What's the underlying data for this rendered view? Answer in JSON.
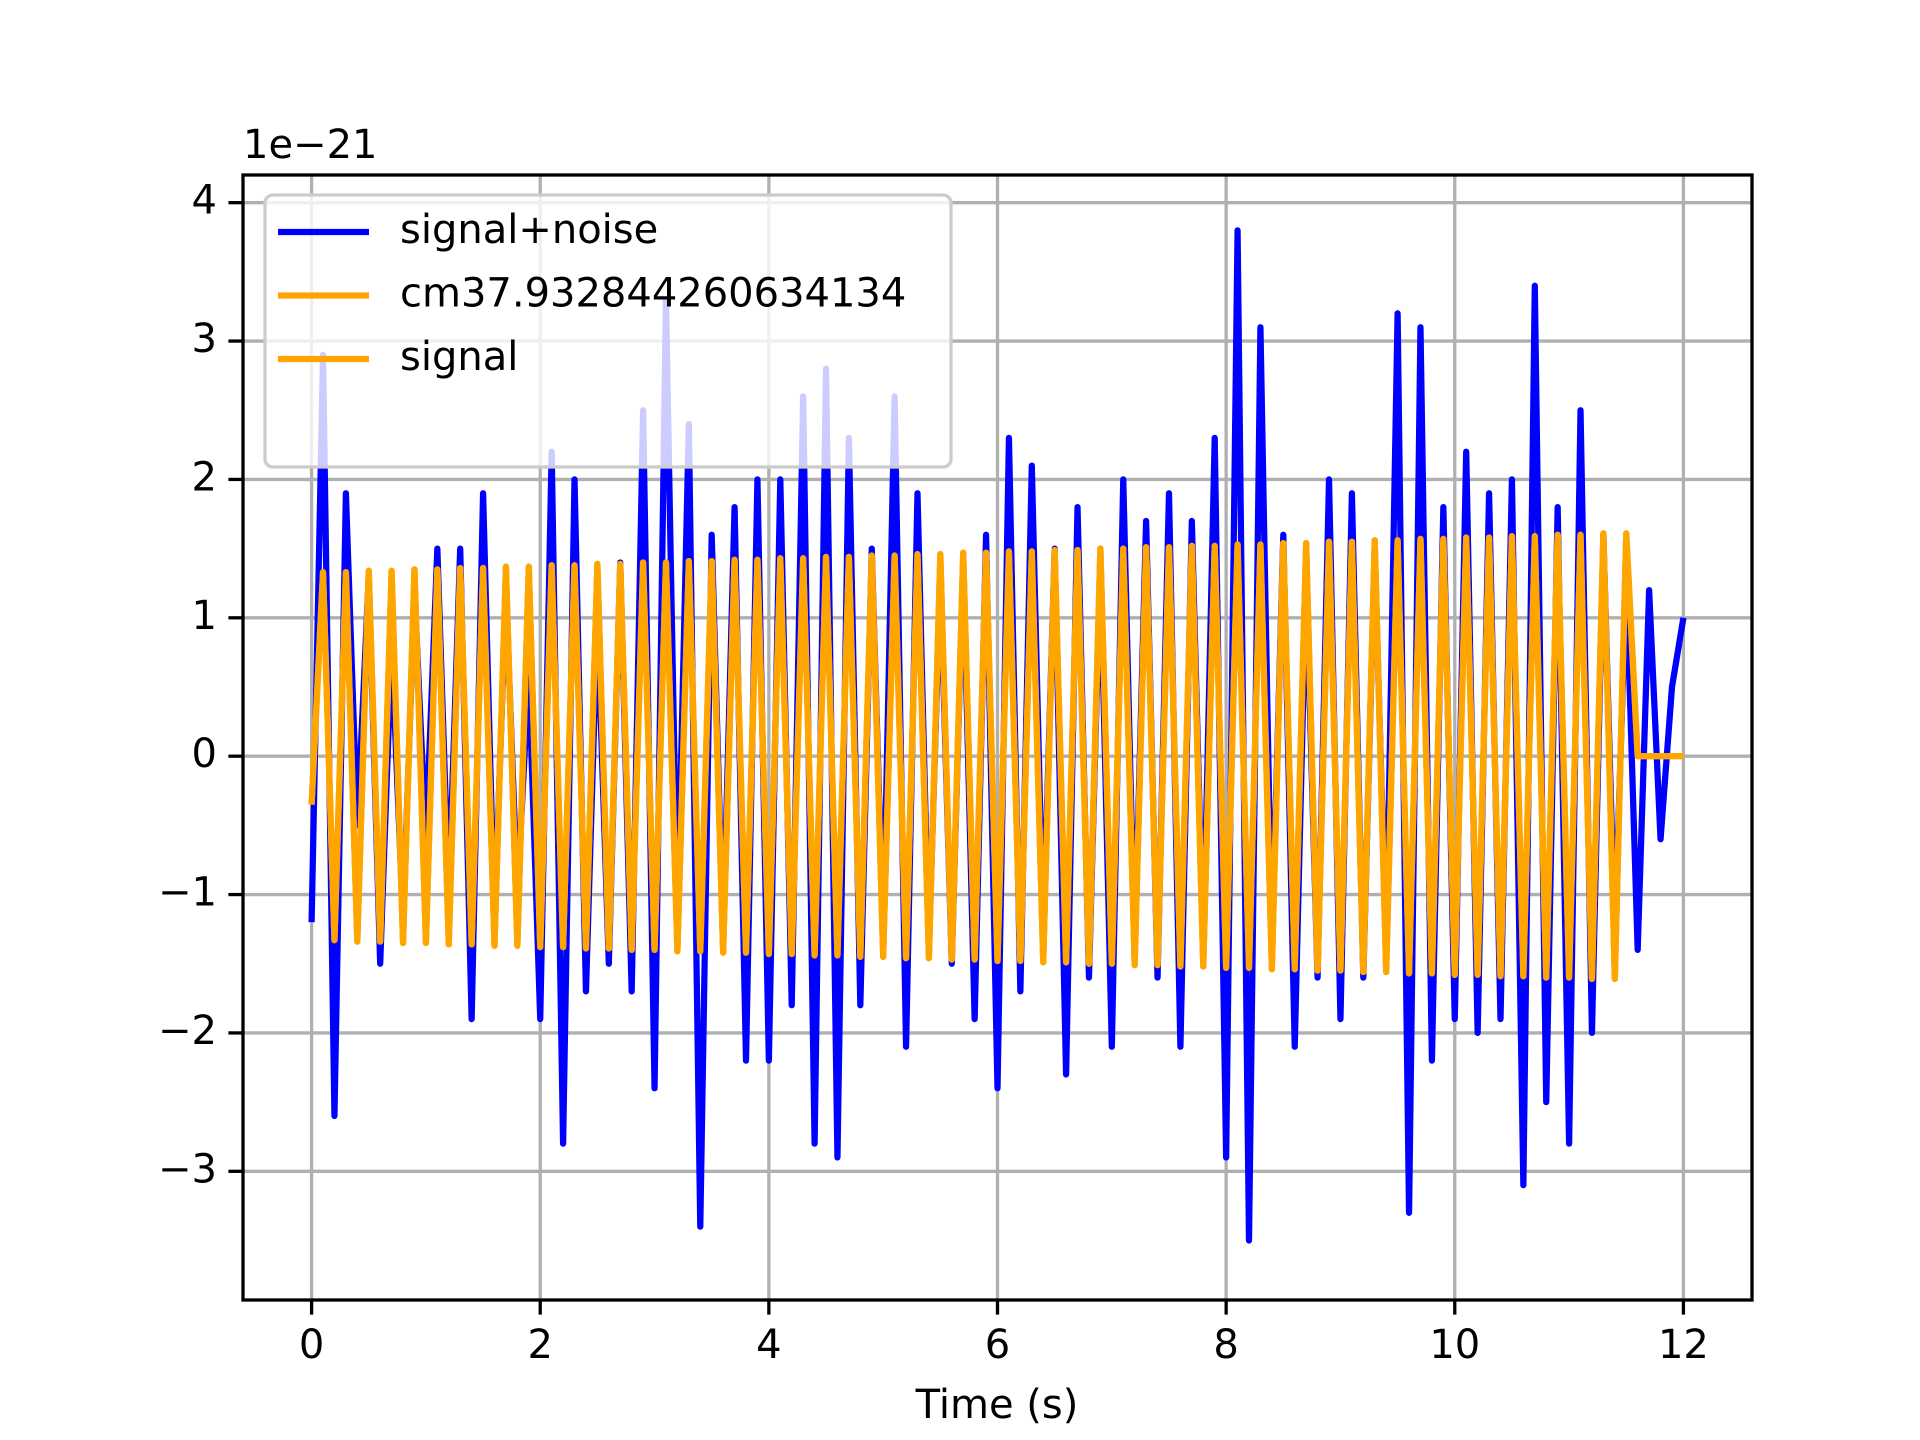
{
  "chart_data": {
    "type": "line",
    "offset_text": "1e−21",
    "xlabel": "Time (s)",
    "x": [
      0,
      0.1,
      0.2,
      0.3,
      0.4,
      0.5,
      0.6,
      0.7,
      0.8,
      0.9,
      1,
      1.1,
      1.2,
      1.3,
      1.4,
      1.5,
      1.6,
      1.7,
      1.8,
      1.9,
      2,
      2.1,
      2.2,
      2.3,
      2.4,
      2.5,
      2.6,
      2.7,
      2.8,
      2.9,
      3,
      3.1,
      3.2,
      3.3,
      3.4,
      3.5,
      3.6,
      3.7,
      3.8,
      3.9,
      4,
      4.1,
      4.2,
      4.3,
      4.4,
      4.5,
      4.6,
      4.7,
      4.8,
      4.9,
      5,
      5.1,
      5.2,
      5.3,
      5.4,
      5.5,
      5.6,
      5.7,
      5.8,
      5.9,
      6,
      6.1,
      6.2,
      6.3,
      6.4,
      6.5,
      6.6,
      6.7,
      6.8,
      6.9,
      7,
      7.1,
      7.2,
      7.3,
      7.4,
      7.5,
      7.6,
      7.7,
      7.8,
      7.9,
      8,
      8.1,
      8.2,
      8.3,
      8.4,
      8.5,
      8.6,
      8.7,
      8.8,
      8.9,
      9,
      9.1,
      9.2,
      9.3,
      9.4,
      9.5,
      9.6,
      9.7,
      9.8,
      9.9,
      10,
      10.1,
      10.2,
      10.3,
      10.4,
      10.5,
      10.6,
      10.7,
      10.8,
      10.9,
      11,
      11.1,
      11.2,
      11.3,
      11.4,
      11.5,
      11.6,
      11.7,
      11.8,
      11.9,
      12
    ],
    "series": [
      {
        "name": "signal+noise",
        "color": "#0000ff",
        "values": [
          -1.2,
          2.9,
          -2.6,
          1.9,
          -0.5,
          1.3,
          -1.5,
          0.8,
          -1.2,
          1.2,
          -0.6,
          1.5,
          -1.0,
          1.5,
          -1.9,
          1.9,
          -1.2,
          1.2,
          -1.0,
          0.6,
          -1.9,
          2.2,
          -2.8,
          2.0,
          -1.7,
          1.0,
          -1.5,
          1.4,
          -1.7,
          2.5,
          -2.4,
          3.3,
          -1.2,
          2.4,
          -3.4,
          1.6,
          -1.3,
          1.8,
          -2.2,
          2.0,
          -2.2,
          2.0,
          -1.8,
          2.6,
          -2.8,
          2.8,
          -2.9,
          2.3,
          -1.8,
          1.5,
          -1.3,
          2.6,
          -2.1,
          1.9,
          -1.4,
          1.3,
          -1.5,
          1.4,
          -1.9,
          1.6,
          -2.4,
          2.3,
          -1.7,
          2.1,
          -1.3,
          1.5,
          -2.3,
          1.8,
          -1.6,
          1.4,
          -2.1,
          2.0,
          -1.4,
          1.7,
          -1.6,
          1.9,
          -2.1,
          1.7,
          -1.4,
          2.3,
          -2.9,
          3.8,
          -3.5,
          3.1,
          -1.4,
          1.6,
          -2.1,
          1.3,
          -1.6,
          2.0,
          -1.9,
          1.9,
          -1.6,
          1.5,
          -1.4,
          3.2,
          -3.3,
          3.1,
          -2.2,
          1.8,
          -1.9,
          2.2,
          -2.0,
          1.9,
          -1.9,
          2.0,
          -3.1,
          3.4,
          -2.5,
          1.8,
          -2.8,
          2.5,
          -2.0,
          1.6,
          -1.3,
          1.3,
          -1.4,
          1.2,
          -0.6,
          0.5,
          1.0
        ]
      },
      {
        "name": "cm37.932844260634134",
        "color": "#ffa500",
        "values": [
          -0.35,
          1.33,
          -1.33,
          1.33,
          -1.34,
          1.34,
          -1.34,
          1.34,
          -1.35,
          1.35,
          -1.35,
          1.35,
          -1.36,
          1.36,
          -1.36,
          1.36,
          -1.37,
          1.37,
          -1.37,
          1.37,
          -1.38,
          1.38,
          -1.38,
          1.38,
          -1.39,
          1.39,
          -1.39,
          1.39,
          -1.4,
          1.4,
          -1.4,
          1.4,
          -1.41,
          1.41,
          -1.41,
          1.41,
          -1.42,
          1.42,
          -1.42,
          1.42,
          -1.43,
          1.43,
          -1.43,
          1.43,
          -1.44,
          1.44,
          -1.44,
          1.44,
          -1.45,
          1.45,
          -1.45,
          1.45,
          -1.46,
          1.46,
          -1.46,
          1.46,
          -1.47,
          1.47,
          -1.47,
          1.47,
          -1.48,
          1.48,
          -1.48,
          1.48,
          -1.49,
          1.49,
          -1.49,
          1.49,
          -1.5,
          1.5,
          -1.5,
          1.5,
          -1.51,
          1.51,
          -1.51,
          1.51,
          -1.52,
          1.52,
          -1.52,
          1.52,
          -1.53,
          1.53,
          -1.53,
          1.53,
          -1.54,
          1.54,
          -1.54,
          1.54,
          -1.55,
          1.55,
          -1.55,
          1.55,
          -1.56,
          1.56,
          -1.56,
          1.56,
          -1.57,
          1.57,
          -1.57,
          1.57,
          -1.58,
          1.58,
          -1.58,
          1.58,
          -1.59,
          1.59,
          -1.59,
          1.59,
          -1.6,
          1.6,
          -1.6,
          1.6,
          -1.61,
          1.61,
          -1.61,
          1.61,
          0,
          0,
          0,
          0,
          0
        ]
      },
      {
        "name": "signal",
        "color": "#ffa500",
        "values": [
          -0.35,
          1.33,
          -1.33,
          1.33,
          -1.34,
          1.34,
          -1.34,
          1.34,
          -1.35,
          1.35,
          -1.35,
          1.35,
          -1.36,
          1.36,
          -1.36,
          1.36,
          -1.37,
          1.37,
          -1.37,
          1.37,
          -1.38,
          1.38,
          -1.38,
          1.38,
          -1.39,
          1.39,
          -1.39,
          1.39,
          -1.4,
          1.4,
          -1.4,
          1.4,
          -1.41,
          1.41,
          -1.41,
          1.41,
          -1.42,
          1.42,
          -1.42,
          1.42,
          -1.43,
          1.43,
          -1.43,
          1.43,
          -1.44,
          1.44,
          -1.44,
          1.44,
          -1.45,
          1.45,
          -1.45,
          1.45,
          -1.46,
          1.46,
          -1.46,
          1.46,
          -1.47,
          1.47,
          -1.47,
          1.47,
          -1.48,
          1.48,
          -1.48,
          1.48,
          -1.49,
          1.49,
          -1.49,
          1.49,
          -1.5,
          1.5,
          -1.5,
          1.5,
          -1.51,
          1.51,
          -1.51,
          1.51,
          -1.52,
          1.52,
          -1.52,
          1.52,
          -1.53,
          1.53,
          -1.53,
          1.53,
          -1.54,
          1.54,
          -1.54,
          1.54,
          -1.55,
          1.55,
          -1.55,
          1.55,
          -1.56,
          1.56,
          -1.56,
          1.56,
          -1.57,
          1.57,
          -1.57,
          1.57,
          -1.58,
          1.58,
          -1.58,
          1.58,
          -1.59,
          1.59,
          -1.59,
          1.59,
          -1.6,
          1.6,
          -1.6,
          1.6,
          -1.61,
          1.61,
          -1.61,
          1.61,
          0,
          0,
          0,
          0,
          0
        ]
      }
    ],
    "xlim": [
      -0.6,
      12.6
    ],
    "xticks": [
      0,
      2,
      4,
      6,
      8,
      10,
      12
    ],
    "ylim": [
      -3.93,
      4.2
    ],
    "yticks": [
      {
        "value": -3,
        "label": "−3"
      },
      {
        "value": -2,
        "label": "−2"
      },
      {
        "value": -1,
        "label": "−1"
      },
      0,
      1,
      2,
      3,
      4
    ],
    "grid": true,
    "legend": "upper left"
  }
}
